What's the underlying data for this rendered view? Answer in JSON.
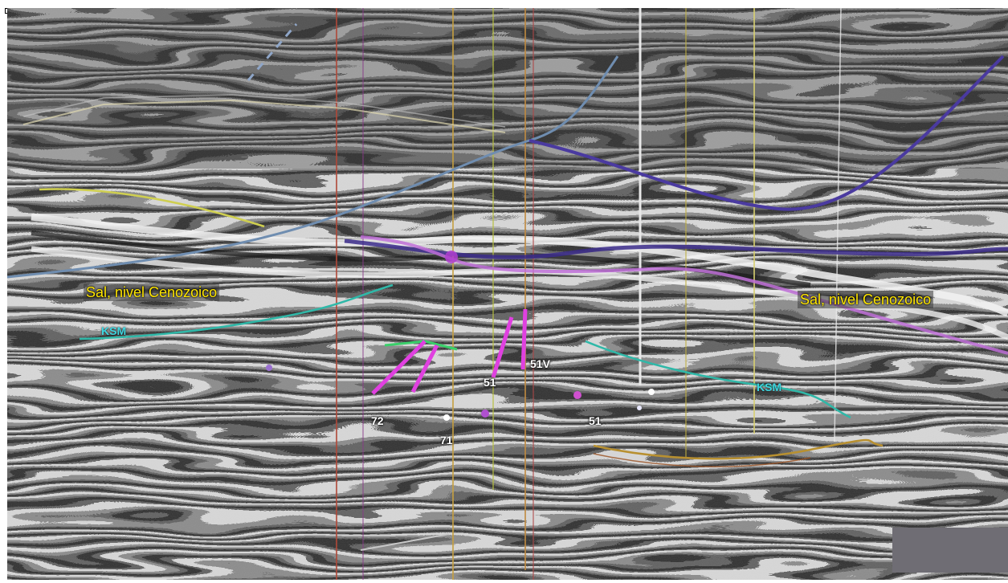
{
  "labels": {
    "salt_left": "Sal, nivel Cenozoico",
    "salt_right": "Sal, nivel Cenozoico",
    "ksm_left": "KSM",
    "ksm_right": "KSM"
  },
  "wells": {
    "w72": "72",
    "w71": "71",
    "w51a": "51",
    "w51v": "51V",
    "w51b": "51"
  },
  "colors": {
    "annotation_text": "#ffe600",
    "horizon_ksm": "#3fd6e0",
    "well_paths": "#e040e0",
    "salt_top": "#3a3aa0"
  }
}
